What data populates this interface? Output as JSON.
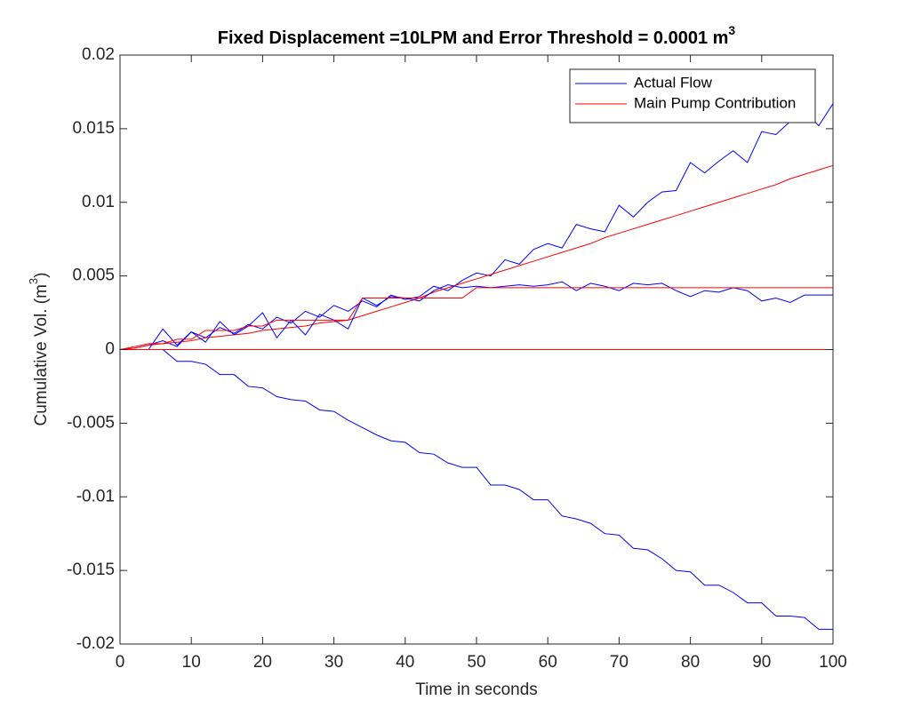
{
  "chart_data": {
    "type": "line",
    "title": {
      "text": "Fixed Displacement =10LPM and Error Threshold = 0.0001 m",
      "superscript": "3"
    },
    "xlabel": "Time in seconds",
    "ylabel": {
      "before": "Cumulative Vol. (m",
      "superscript": "3",
      "after": ")"
    },
    "xlim": [
      0,
      100
    ],
    "ylim": [
      -0.02,
      0.02
    ],
    "xticks": [
      0,
      10,
      20,
      30,
      40,
      50,
      60,
      70,
      80,
      90,
      100
    ],
    "yticks": [
      -0.02,
      -0.015,
      -0.01,
      -0.005,
      0,
      0.005,
      0.01,
      0.015,
      0.02
    ],
    "legend": "northeast",
    "x": [
      0,
      2,
      4,
      6,
      8,
      10,
      12,
      14,
      16,
      18,
      20,
      22,
      24,
      26,
      28,
      30,
      32,
      34,
      36,
      38,
      40,
      42,
      44,
      46,
      48,
      50,
      52,
      54,
      56,
      58,
      60,
      62,
      64,
      66,
      68,
      70,
      72,
      74,
      76,
      78,
      80,
      82,
      84,
      86,
      88,
      90,
      92,
      94,
      96,
      98,
      100
    ],
    "series": [
      {
        "name": "Actual Flow",
        "color": "#0000ff",
        "values": [
          0,
          0.0001,
          0.0003,
          0.0006,
          0.0002,
          0.0012,
          0.0008,
          0.0015,
          0.0011,
          0.0017,
          0.0014,
          0.0022,
          0.0018,
          0.0026,
          0.0022,
          0.003,
          0.0026,
          0.0033,
          0.0029,
          0.0037,
          0.0034,
          0.0036,
          0.0043,
          0.004,
          0.0047,
          0.0052,
          0.005,
          0.0061,
          0.0058,
          0.0068,
          0.0072,
          0.0069,
          0.0085,
          0.0082,
          0.008,
          0.0098,
          0.009,
          0.01,
          0.0107,
          0.0108,
          0.0127,
          0.012,
          0.0128,
          0.0135,
          0.0127,
          0.0148,
          0.0146,
          0.0155,
          0.0162,
          0.0152,
          0.0167
        ]
      },
      {
        "name": "Main Pump Contribution",
        "color": "#ff0000",
        "values": [
          0,
          0.0001,
          0.0003,
          0.0004,
          0.0005,
          0.0006,
          0.0008,
          0.0009,
          0.001,
          0.0011,
          0.0013,
          0.0014,
          0.0015,
          0.0016,
          0.0018,
          0.0019,
          0.002,
          0.0023,
          0.0026,
          0.0029,
          0.0032,
          0.0035,
          0.0039,
          0.0042,
          0.0045,
          0.0048,
          0.0051,
          0.0054,
          0.0057,
          0.006,
          0.0063,
          0.0066,
          0.0069,
          0.0072,
          0.0076,
          0.0079,
          0.0082,
          0.0085,
          0.0088,
          0.0091,
          0.0094,
          0.0097,
          0.01,
          0.0103,
          0.0106,
          0.0109,
          0.0112,
          0.0116,
          0.0119,
          0.0122,
          0.0125
        ]
      },
      {
        "color": "#0000ff",
        "values": [
          0,
          0,
          0,
          0.0014,
          0.0003,
          0.0012,
          0.0005,
          0.0019,
          0.001,
          0.0016,
          0.0025,
          0.0008,
          0.002,
          0.001,
          0.0024,
          0.002,
          0.0014,
          0.0035,
          0.003,
          0.0036,
          0.0035,
          0.0033,
          0.004,
          0.0044,
          0.0042,
          0.0043,
          0.0042,
          0.0043,
          0.0044,
          0.0043,
          0.0044,
          0.0046,
          0.004,
          0.0045,
          0.0043,
          0.004,
          0.0045,
          0.0044,
          0.0045,
          0.004,
          0.0036,
          0.004,
          0.0039,
          0.0042,
          0.004,
          0.0033,
          0.0035,
          0.0032,
          0.0037,
          0.0037,
          0.0037
        ]
      },
      {
        "color": "#0000ff",
        "values": [
          0,
          0,
          0,
          0,
          -0.0008,
          -0.0008,
          -0.001,
          -0.0017,
          -0.0017,
          -0.0025,
          -0.0026,
          -0.0032,
          -0.0034,
          -0.0035,
          -0.0041,
          -0.0042,
          -0.0048,
          -0.0053,
          -0.0058,
          -0.0062,
          -0.0063,
          -0.007,
          -0.0071,
          -0.0077,
          -0.008,
          -0.008,
          -0.0092,
          -0.0092,
          -0.0095,
          -0.0102,
          -0.0102,
          -0.0113,
          -0.0115,
          -0.0118,
          -0.0125,
          -0.0126,
          -0.0135,
          -0.0136,
          -0.0142,
          -0.015,
          -0.0151,
          -0.016,
          -0.016,
          -0.0165,
          -0.0172,
          -0.0172,
          -0.0181,
          -0.0181,
          -0.0182,
          -0.019,
          -0.019
        ]
      },
      {
        "color": "#ff0000",
        "values": [
          0,
          0.0002,
          0.0004,
          0.0004,
          0.0007,
          0.0007,
          0.0013,
          0.0013,
          0.0013,
          0.0016,
          0.0016,
          0.002,
          0.002,
          0.002,
          0.002,
          0.002,
          0.002,
          0.0035,
          0.0035,
          0.0035,
          0.0035,
          0.0035,
          0.0035,
          0.0035,
          0.0035,
          0.0042,
          0.0042,
          0.0042,
          0.0042,
          0.0042,
          0.0042,
          0.0042,
          0.0042,
          0.0042,
          0.0042,
          0.0042,
          0.0042,
          0.0042,
          0.0042,
          0.0042,
          0.0042,
          0.0042,
          0.0042,
          0.0042,
          0.0042,
          0.0042,
          0.0042,
          0.0042,
          0.0042,
          0.0042,
          0.0042
        ]
      },
      {
        "color": "#ff0000",
        "values": [
          0,
          0,
          0,
          0,
          0,
          0,
          0,
          0,
          0,
          0,
          0,
          0,
          0,
          0,
          0,
          0,
          0,
          0,
          0,
          0,
          0,
          0,
          0,
          0,
          0,
          0,
          0,
          0,
          0,
          0,
          0,
          0,
          0,
          0,
          0,
          0,
          0,
          0,
          0,
          0,
          0,
          0,
          0,
          0,
          0,
          0,
          0,
          0,
          0,
          0,
          0
        ]
      }
    ]
  }
}
